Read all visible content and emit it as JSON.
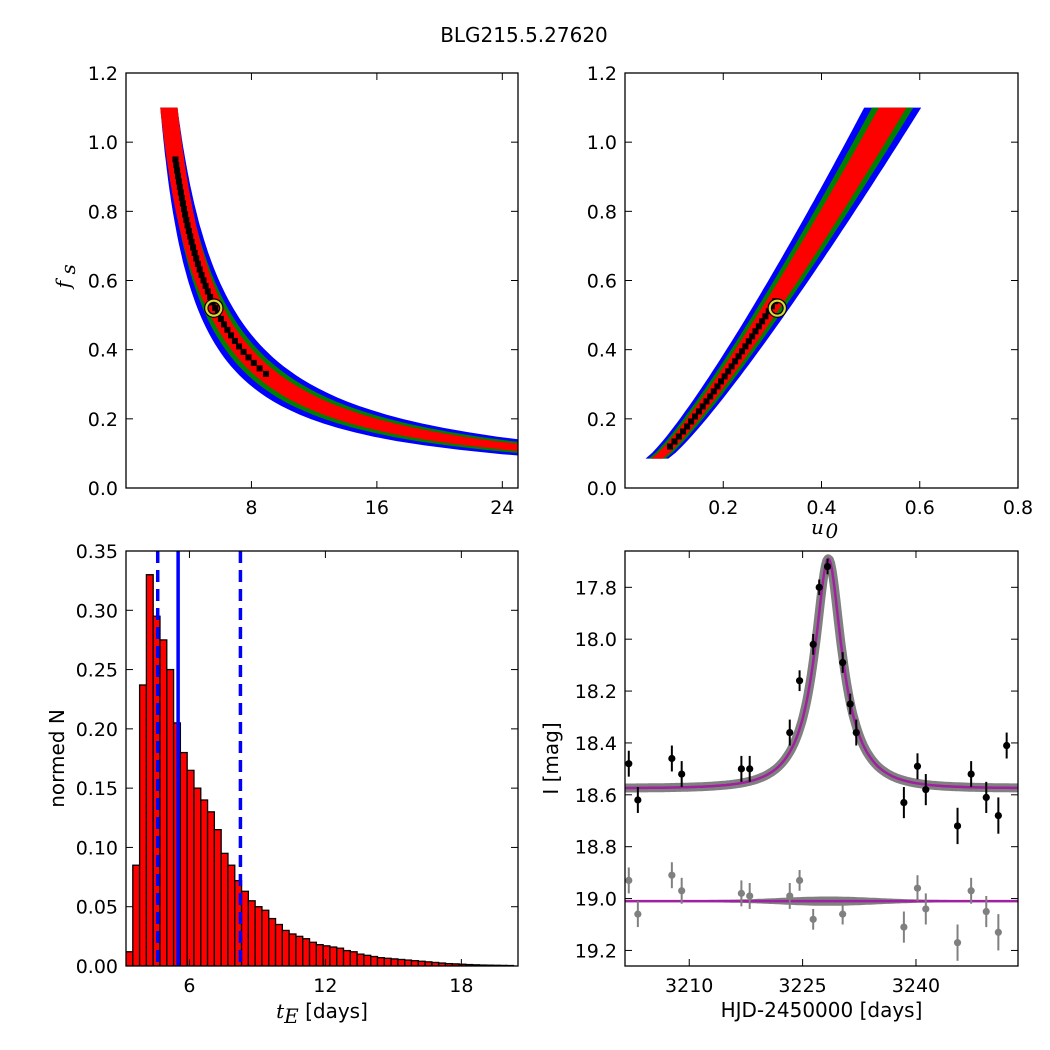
{
  "figure": {
    "title": "BLG215.5.27620"
  },
  "colors": {
    "sigma3": "#0000ff",
    "sigma2": "#008000",
    "sigma1": "#ff0000",
    "best": "#000000",
    "marker": "#d8d83a",
    "bar_fill": "#ff0000",
    "bar_edge": "#000000",
    "vline": "#0000ff",
    "model": "#a020a0",
    "band": "#808080",
    "data_points": "#000000",
    "residual_points": "#808080"
  },
  "chart_data": [
    {
      "id": "fs-te",
      "type": "heatmap",
      "title": "",
      "xlabel": "",
      "ylabel": "f",
      "ylabel_sub": "s",
      "xlim": [
        0,
        25
      ],
      "ylim": [
        0.0,
        1.2
      ],
      "xticks": [
        8,
        16,
        24
      ],
      "xtick_labels": [
        "8",
        "16",
        "24"
      ],
      "yticks": [
        0.0,
        0.2,
        0.4,
        0.6,
        0.8,
        1.0,
        1.2
      ],
      "ytick_labels": [
        "0.0",
        "0.2",
        "0.4",
        "0.6",
        "0.8",
        "1.0",
        "1.2"
      ],
      "relation": "x = 2.92 / fs + 0.08 (locus of the posterior ridge in t_E [days] vs f_s)",
      "ridge": {
        "fs_range": [
          0.085,
          1.1
        ],
        "coef": 2.92,
        "offset": 0.08
      },
      "regions": [
        {
          "level": "3-sigma",
          "color_key": "sigma3",
          "half_width_frac": 0.2
        },
        {
          "level": "2-sigma",
          "color_key": "sigma2",
          "half_width_frac": 0.14
        },
        {
          "level": "1-sigma",
          "color_key": "sigma1",
          "half_width_frac": 0.09
        }
      ],
      "best_fit": {
        "x": 5.6,
        "y": 0.52
      }
    },
    {
      "id": "fs-u0",
      "type": "heatmap",
      "title": "",
      "xlabel": "u",
      "xlabel_sub": "0",
      "ylabel": "",
      "xlim": [
        0.0,
        0.8
      ],
      "ylim": [
        0.0,
        1.2
      ],
      "xticks": [
        0.2,
        0.4,
        0.6,
        0.8
      ],
      "xtick_labels": [
        "0.2",
        "0.4",
        "0.6",
        "0.8"
      ],
      "yticks": [
        0.0,
        0.2,
        0.4,
        0.6,
        0.8,
        1.0,
        1.2
      ],
      "ytick_labels": [
        "0.0",
        "0.2",
        "0.4",
        "0.6",
        "0.8",
        "1.0",
        "1.2"
      ],
      "ridge": {
        "fs_range": [
          0.085,
          1.1
        ],
        "u0_at_min": 0.065,
        "u0_at_max": 0.545,
        "power": 0.86
      },
      "regions": [
        {
          "level": "3-sigma",
          "color_key": "sigma3",
          "half_width": 0.058
        },
        {
          "level": "2-sigma",
          "color_key": "sigma2",
          "half_width": 0.042
        },
        {
          "level": "1-sigma",
          "color_key": "sigma1",
          "half_width": 0.028
        }
      ],
      "best_fit": {
        "x": 0.31,
        "y": 0.52
      }
    },
    {
      "id": "te-hist",
      "type": "bar",
      "title": "",
      "xlabel": "t",
      "xlabel_sub": "E",
      "xlabel_unit": " [days]",
      "ylabel": "normed N",
      "xlim": [
        3.2,
        20.5
      ],
      "ylim": [
        0.0,
        0.35
      ],
      "xticks": [
        6,
        12,
        18
      ],
      "xtick_labels": [
        "6",
        "12",
        "18"
      ],
      "yticks": [
        0.0,
        0.05,
        0.1,
        0.15,
        0.2,
        0.25,
        0.3,
        0.35
      ],
      "ytick_labels": [
        "0.00",
        "0.05",
        "0.10",
        "0.15",
        "0.20",
        "0.25",
        "0.30",
        "0.35"
      ],
      "bin_start": 3.2,
      "bin_width": 0.3,
      "values": [
        0.012,
        0.085,
        0.237,
        0.33,
        0.295,
        0.275,
        0.25,
        0.205,
        0.18,
        0.165,
        0.15,
        0.14,
        0.13,
        0.115,
        0.095,
        0.085,
        0.072,
        0.063,
        0.055,
        0.05,
        0.047,
        0.04,
        0.035,
        0.03,
        0.027,
        0.025,
        0.023,
        0.02,
        0.018,
        0.017,
        0.016,
        0.015,
        0.013,
        0.012,
        0.01,
        0.009,
        0.008,
        0.007,
        0.0065,
        0.006,
        0.0055,
        0.005,
        0.0045,
        0.004,
        0.0035,
        0.003,
        0.0025,
        0.002,
        0.0018,
        0.0015,
        0.0012,
        0.001,
        0.0008,
        0.0007,
        0.0006,
        0.0005,
        0.0004
      ],
      "vlines": [
        {
          "name": "lower-bound",
          "x": 4.6,
          "style": "dashed"
        },
        {
          "name": "median",
          "x": 5.5,
          "style": "solid"
        },
        {
          "name": "upper-bound",
          "x": 8.25,
          "style": "dashed"
        }
      ]
    },
    {
      "id": "lightcurve",
      "type": "scatter",
      "title": "",
      "xlabel": "HJD-2450000 [days]",
      "ylabel": "I [mag]",
      "xlim": [
        3201.5,
        3253.5
      ],
      "ylim": [
        19.26,
        17.66
      ],
      "xticks": [
        3210,
        3225,
        3240
      ],
      "xtick_labels": [
        "3210",
        "3225",
        "3240"
      ],
      "yticks": [
        17.8,
        18.0,
        18.2,
        18.4,
        18.6,
        18.8,
        19.0,
        19.2
      ],
      "ytick_labels": [
        "17.8",
        "18.0",
        "18.2",
        "18.4",
        "18.6",
        "18.8",
        "19.0",
        "19.2"
      ],
      "model": {
        "baseline": 18.575,
        "peak_mag": 17.69,
        "t0": 3228.4,
        "tE": 5.6,
        "u0": 0.31
      },
      "residual_baseline": 19.01,
      "series": [
        {
          "name": "photometry",
          "x": [
            3202.0,
            3203.2,
            3207.7,
            3209.0,
            3216.9,
            3218.0,
            3223.3,
            3224.6,
            3226.4,
            3227.2,
            3228.3,
            3230.3,
            3231.3,
            3232.1,
            3238.4,
            3240.2,
            3241.3,
            3245.5,
            3247.3,
            3249.3,
            3250.9,
            3252.0
          ],
          "y": [
            18.48,
            18.62,
            18.46,
            18.52,
            18.5,
            18.5,
            18.36,
            18.16,
            18.02,
            17.8,
            17.72,
            18.09,
            18.25,
            18.36,
            18.63,
            18.49,
            18.58,
            18.72,
            18.52,
            18.61,
            18.68,
            18.41
          ],
          "yerr": [
            0.05,
            0.05,
            0.05,
            0.05,
            0.05,
            0.05,
            0.05,
            0.04,
            0.04,
            0.03,
            0.03,
            0.04,
            0.04,
            0.05,
            0.06,
            0.05,
            0.06,
            0.07,
            0.05,
            0.06,
            0.07,
            0.05
          ]
        },
        {
          "name": "residuals",
          "x": [
            3202.0,
            3203.2,
            3207.7,
            3209.0,
            3216.9,
            3218.0,
            3223.3,
            3224.6,
            3226.4,
            3230.3,
            3238.4,
            3240.2,
            3241.3,
            3245.5,
            3247.3,
            3249.3,
            3250.9
          ],
          "y": [
            18.93,
            19.06,
            18.91,
            18.97,
            18.98,
            18.99,
            18.99,
            18.93,
            19.08,
            19.06,
            19.11,
            18.96,
            19.04,
            19.17,
            18.97,
            19.05,
            19.13
          ],
          "yerr": [
            0.05,
            0.05,
            0.05,
            0.05,
            0.05,
            0.05,
            0.05,
            0.04,
            0.04,
            0.04,
            0.06,
            0.05,
            0.06,
            0.07,
            0.05,
            0.06,
            0.07
          ]
        }
      ]
    }
  ]
}
